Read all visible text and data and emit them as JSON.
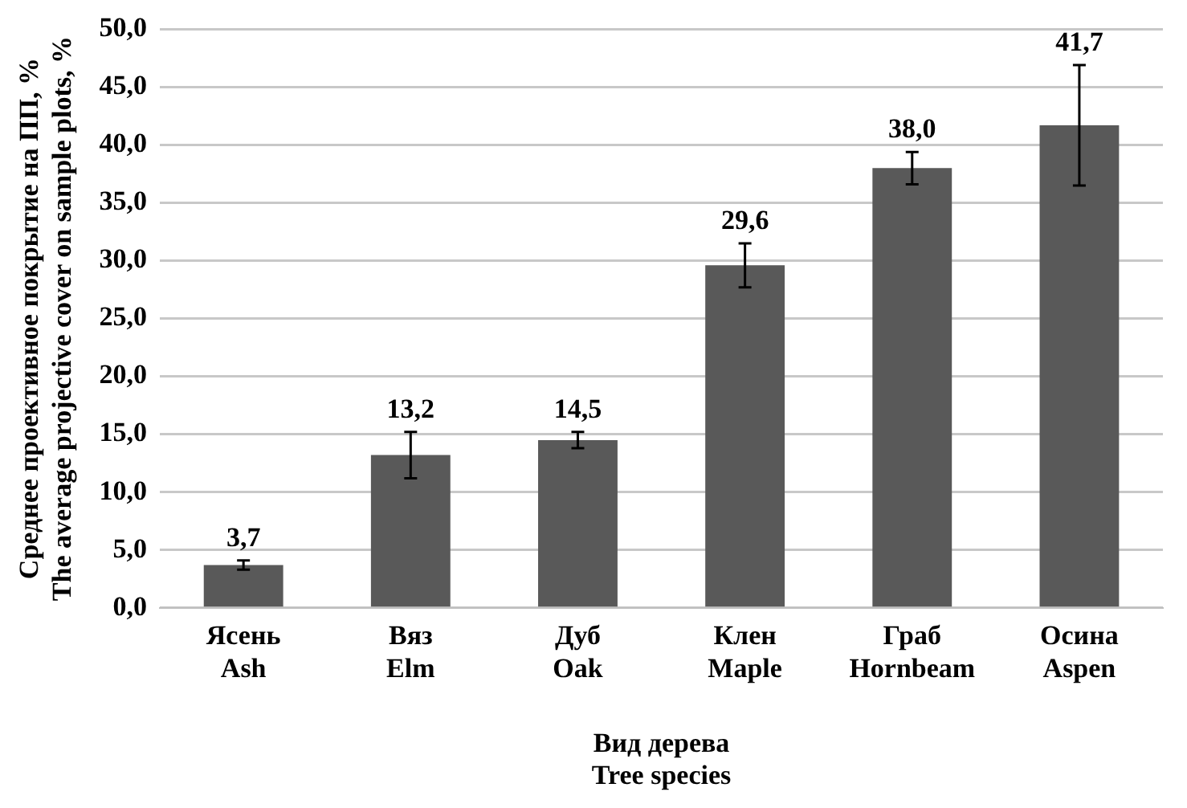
{
  "chart_data": {
    "type": "bar",
    "xlabel": "Вид дерева\nTree species",
    "ylabel": "Среднее проективное покрытие на ПП, %\nThe average projective cover on sample plots, %",
    "categories": [
      "Ясень\nAsh",
      "Вяз\nElm",
      "Дуб\nOak",
      "Клен\nMaple",
      "Граб\nHornbeam",
      "Осина\nAspen"
    ],
    "values": [
      3.7,
      13.2,
      14.5,
      29.6,
      38.0,
      41.7
    ],
    "errors": [
      0.4,
      2.0,
      0.7,
      1.9,
      1.4,
      5.2
    ],
    "value_labels": [
      "3,7",
      "13,2",
      "14,5",
      "29,6",
      "38,0",
      "41,7"
    ],
    "color": "#595959",
    "ylim": [
      0,
      50
    ],
    "yticks": [
      {
        "value": 0,
        "label": "0,0"
      },
      {
        "value": 5,
        "label": "5,0"
      },
      {
        "value": 10,
        "label": "10,0"
      },
      {
        "value": 15,
        "label": "15,0"
      },
      {
        "value": 20,
        "label": "20,0"
      },
      {
        "value": 25,
        "label": "25,0"
      },
      {
        "value": 30,
        "label": "30,0"
      },
      {
        "value": 35,
        "label": "35,0"
      },
      {
        "value": 40,
        "label": "40,0"
      },
      {
        "value": 45,
        "label": "45,0"
      },
      {
        "value": 50,
        "label": "50,0"
      }
    ],
    "grid": "y",
    "legend": false
  }
}
